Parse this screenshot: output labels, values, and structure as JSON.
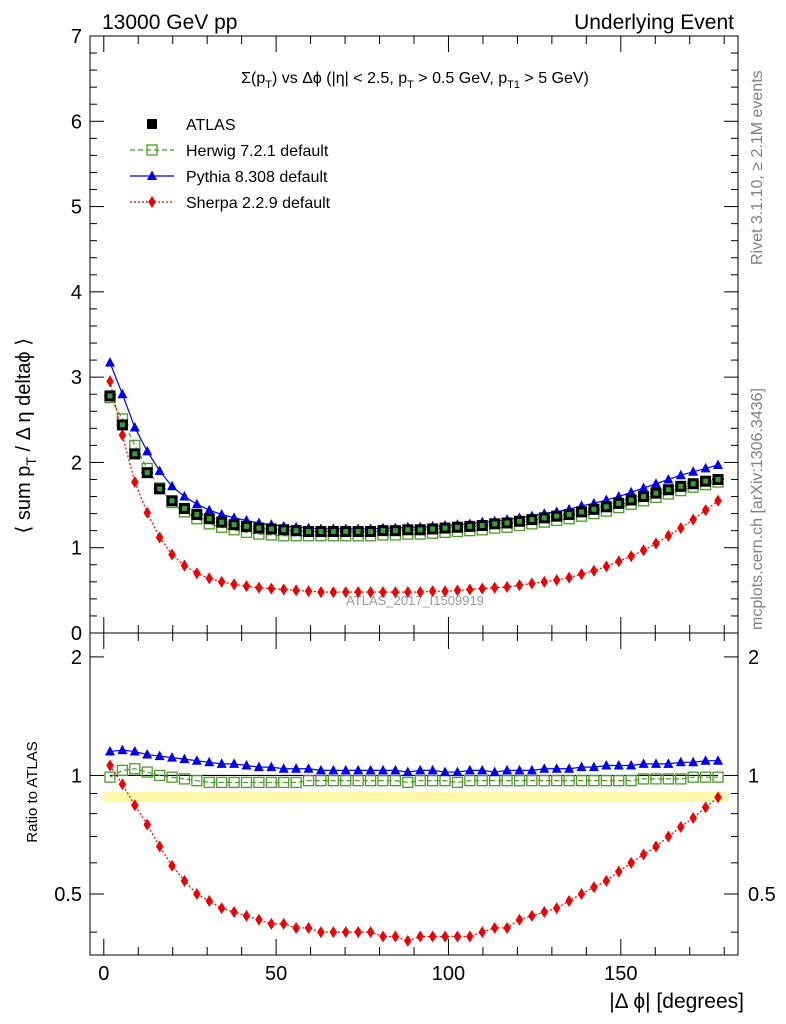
{
  "chart_data": [
    {
      "type": "line",
      "title": "Σ(p_T) vs Δφ (|η| < 2.5, p_T > 0.5 GeV, p_T1 > 5 GeV)",
      "header_left": "13000 GeV pp",
      "header_right": "Underlying Event",
      "xlabel": "",
      "ylabel": "⟨ sum p_T / Δ η deltaφ ⟩",
      "ylim": [
        0,
        7
      ],
      "xlim": [
        -4,
        184
      ],
      "yticks": [
        "0",
        "1",
        "2",
        "3",
        "4",
        "5",
        "6",
        "7"
      ],
      "watermark": "ATLAS_2017_I1509919",
      "grid": false,
      "legend_position": "top-left",
      "x": [
        1.8,
        5.4,
        9.0,
        12.6,
        16.2,
        19.8,
        23.4,
        27.0,
        30.6,
        34.2,
        37.8,
        41.4,
        45.0,
        48.6,
        52.2,
        55.8,
        59.4,
        63.0,
        66.6,
        70.2,
        73.8,
        77.4,
        81.0,
        84.6,
        88.2,
        91.8,
        95.4,
        99.0,
        102.6,
        106.2,
        109.8,
        113.4,
        117.0,
        120.6,
        124.2,
        127.8,
        131.4,
        135.0,
        138.6,
        142.2,
        145.8,
        149.4,
        153.0,
        156.6,
        160.2,
        163.8,
        167.4,
        171.0,
        174.6,
        178.2
      ],
      "series": [
        {
          "name": "ATLAS",
          "color": "#000000",
          "marker": "square-filled",
          "values": [
            2.78,
            2.44,
            2.1,
            1.88,
            1.69,
            1.55,
            1.46,
            1.39,
            1.34,
            1.3,
            1.27,
            1.25,
            1.23,
            1.22,
            1.21,
            1.2,
            1.19,
            1.19,
            1.19,
            1.19,
            1.19,
            1.19,
            1.2,
            1.2,
            1.21,
            1.21,
            1.22,
            1.23,
            1.24,
            1.25,
            1.26,
            1.28,
            1.29,
            1.31,
            1.33,
            1.35,
            1.37,
            1.39,
            1.42,
            1.45,
            1.48,
            1.52,
            1.56,
            1.6,
            1.64,
            1.68,
            1.72,
            1.75,
            1.78,
            1.8
          ]
        },
        {
          "name": "Herwig 7.2.1 default",
          "color": "#4c9a2a",
          "marker": "square-open",
          "values": [
            2.76,
            2.51,
            2.2,
            1.93,
            1.7,
            1.53,
            1.42,
            1.34,
            1.28,
            1.24,
            1.21,
            1.18,
            1.16,
            1.15,
            1.14,
            1.14,
            1.14,
            1.14,
            1.14,
            1.14,
            1.14,
            1.14,
            1.15,
            1.15,
            1.16,
            1.16,
            1.17,
            1.18,
            1.19,
            1.2,
            1.21,
            1.23,
            1.24,
            1.26,
            1.28,
            1.3,
            1.32,
            1.34,
            1.37,
            1.4,
            1.43,
            1.47,
            1.51,
            1.55,
            1.59,
            1.63,
            1.67,
            1.71,
            1.74,
            1.77
          ]
        },
        {
          "name": "Pythia 8.308 default",
          "color": "#0000ee",
          "marker": "triangle-filled",
          "values": [
            3.17,
            2.8,
            2.41,
            2.13,
            1.9,
            1.72,
            1.6,
            1.51,
            1.44,
            1.39,
            1.35,
            1.32,
            1.29,
            1.27,
            1.25,
            1.24,
            1.23,
            1.22,
            1.22,
            1.22,
            1.22,
            1.22,
            1.23,
            1.23,
            1.24,
            1.24,
            1.25,
            1.26,
            1.27,
            1.28,
            1.3,
            1.31,
            1.33,
            1.35,
            1.37,
            1.4,
            1.42,
            1.45,
            1.49,
            1.52,
            1.56,
            1.6,
            1.65,
            1.7,
            1.75,
            1.8,
            1.85,
            1.89,
            1.93,
            1.97
          ]
        },
        {
          "name": "Sherpa 2.2.9 default",
          "color": "#ee0000",
          "marker": "diamond-filled",
          "values": [
            2.95,
            2.32,
            1.77,
            1.41,
            1.12,
            0.92,
            0.79,
            0.7,
            0.64,
            0.6,
            0.57,
            0.55,
            0.53,
            0.52,
            0.51,
            0.5,
            0.49,
            0.48,
            0.48,
            0.48,
            0.48,
            0.48,
            0.48,
            0.48,
            0.48,
            0.48,
            0.49,
            0.49,
            0.5,
            0.51,
            0.52,
            0.53,
            0.54,
            0.56,
            0.58,
            0.6,
            0.62,
            0.65,
            0.69,
            0.73,
            0.78,
            0.84,
            0.9,
            0.97,
            1.05,
            1.14,
            1.23,
            1.33,
            1.44,
            1.55
          ]
        }
      ]
    },
    {
      "type": "line",
      "xlabel": "|Δ ϕ| [degrees]",
      "ylabel": "Ratio to ATLAS",
      "ylim": [
        0.35,
        2.3
      ],
      "yscale": "log",
      "yticks": [
        {
          "value": 0.5,
          "label": "0.5"
        },
        {
          "value": 1,
          "label": "1"
        },
        {
          "value": 2,
          "label": "2"
        }
      ],
      "xlim": [
        -4,
        184
      ],
      "xticks": [
        {
          "value": 0,
          "label": "0"
        },
        {
          "value": 50,
          "label": "50"
        },
        {
          "value": 100,
          "label": "100"
        },
        {
          "value": 150,
          "label": "150"
        }
      ],
      "grid": false,
      "reference_line": 1,
      "series": [
        {
          "name": "Herwig 7.2.1 default",
          "color": "#4c9a2a",
          "marker": "square-open",
          "values": [
            0.99,
            1.03,
            1.04,
            1.02,
            1.0,
            0.99,
            0.98,
            0.97,
            0.96,
            0.96,
            0.96,
            0.96,
            0.96,
            0.96,
            0.96,
            0.96,
            0.97,
            0.97,
            0.97,
            0.97,
            0.97,
            0.97,
            0.97,
            0.97,
            0.96,
            0.97,
            0.97,
            0.97,
            0.96,
            0.97,
            0.97,
            0.97,
            0.97,
            0.97,
            0.97,
            0.97,
            0.97,
            0.97,
            0.97,
            0.97,
            0.97,
            0.97,
            0.97,
            0.98,
            0.98,
            0.98,
            0.98,
            0.99,
            0.99,
            0.99
          ]
        },
        {
          "name": "Pythia 8.308 default",
          "color": "#0000ee",
          "marker": "triangle-filled",
          "values": [
            1.15,
            1.16,
            1.15,
            1.13,
            1.12,
            1.11,
            1.1,
            1.09,
            1.08,
            1.07,
            1.07,
            1.06,
            1.05,
            1.05,
            1.04,
            1.04,
            1.04,
            1.03,
            1.03,
            1.03,
            1.03,
            1.03,
            1.03,
            1.03,
            1.02,
            1.03,
            1.03,
            1.02,
            1.02,
            1.03,
            1.03,
            1.02,
            1.03,
            1.03,
            1.03,
            1.04,
            1.04,
            1.04,
            1.05,
            1.05,
            1.06,
            1.06,
            1.06,
            1.07,
            1.07,
            1.07,
            1.08,
            1.08,
            1.09,
            1.09
          ]
        },
        {
          "name": "Sherpa 2.2.9 default",
          "color": "#ee0000",
          "marker": "diamond-filled",
          "values": [
            1.06,
            0.95,
            0.84,
            0.75,
            0.66,
            0.59,
            0.54,
            0.5,
            0.48,
            0.46,
            0.45,
            0.44,
            0.43,
            0.42,
            0.42,
            0.41,
            0.41,
            0.4,
            0.4,
            0.4,
            0.4,
            0.4,
            0.39,
            0.39,
            0.38,
            0.39,
            0.39,
            0.39,
            0.39,
            0.39,
            0.4,
            0.41,
            0.41,
            0.43,
            0.44,
            0.45,
            0.46,
            0.48,
            0.5,
            0.52,
            0.54,
            0.57,
            0.6,
            0.63,
            0.66,
            0.7,
            0.74,
            0.78,
            0.83,
            0.88
          ]
        }
      ]
    }
  ],
  "side_labels": {
    "rivet": "Rivet 3.1.10, ≥ 2.1M events",
    "mcplots": "mcplots.cern.ch [arXiv:1306.3436]"
  }
}
